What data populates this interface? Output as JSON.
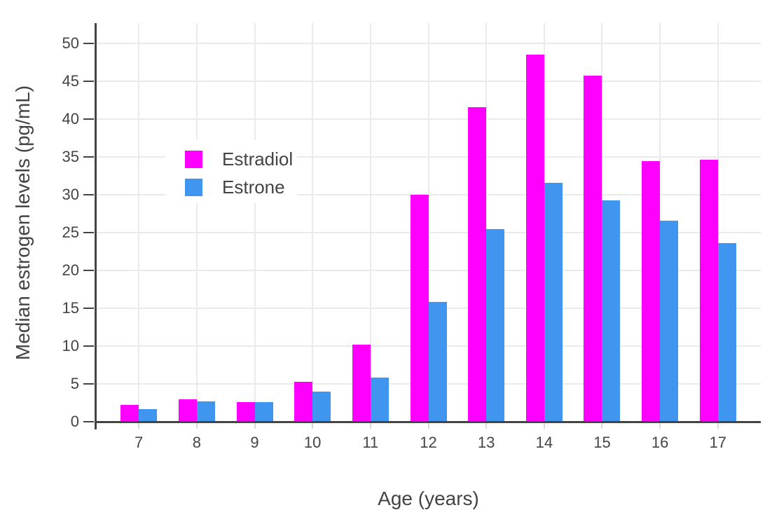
{
  "chart_data": {
    "type": "bar",
    "mode": "grouped",
    "title": "",
    "xlabel": "Age (years)",
    "ylabel": "Median estrogen levels (pg/mL)",
    "categories": [
      "7",
      "8",
      "9",
      "10",
      "11",
      "12",
      "13",
      "14",
      "15",
      "16",
      "17"
    ],
    "series": [
      {
        "name": "Estradiol",
        "color": "#FF00FF",
        "values": [
          2.2,
          3.0,
          2.6,
          5.3,
          10.2,
          30.0,
          41.6,
          48.5,
          45.8,
          34.5,
          34.6
        ]
      },
      {
        "name": "Estrone",
        "color": "#4096EE",
        "values": [
          1.7,
          2.7,
          2.6,
          4.0,
          5.8,
          15.8,
          25.5,
          31.6,
          29.3,
          26.6,
          23.6
        ]
      }
    ],
    "yticks": [
      0,
      5,
      10,
      15,
      20,
      25,
      30,
      35,
      40,
      45,
      50
    ],
    "ylim": [
      0,
      52.7
    ],
    "xlim": [
      -0.74,
      10.74
    ],
    "grid": true,
    "legend_position": "inside-top-left",
    "style": {
      "background": "#FFFFFF",
      "grid_color": "#EBEBEB",
      "axis_color": "#444444",
      "text_color": "#444444",
      "x_tick_mark_color": "#D9D9D9"
    }
  }
}
